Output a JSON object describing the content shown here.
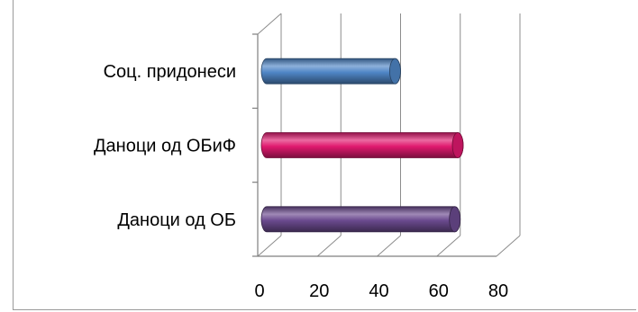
{
  "chart_data": {
    "type": "bar",
    "orientation": "horizontal",
    "style": "3d-cylinder",
    "categories": [
      "Соц. придонеси",
      "Даноци од ОБиФ",
      "Даноци од ОБ"
    ],
    "values": [
      43,
      64,
      63
    ],
    "colors": [
      "#4f86c6",
      "#e0196e",
      "#6b4a8f"
    ],
    "xlim": [
      0,
      80
    ],
    "xticks": [
      "0",
      "20",
      "40",
      "60",
      "80"
    ],
    "title": "",
    "xlabel": "",
    "ylabel": "",
    "grid": true,
    "legend": "none"
  }
}
